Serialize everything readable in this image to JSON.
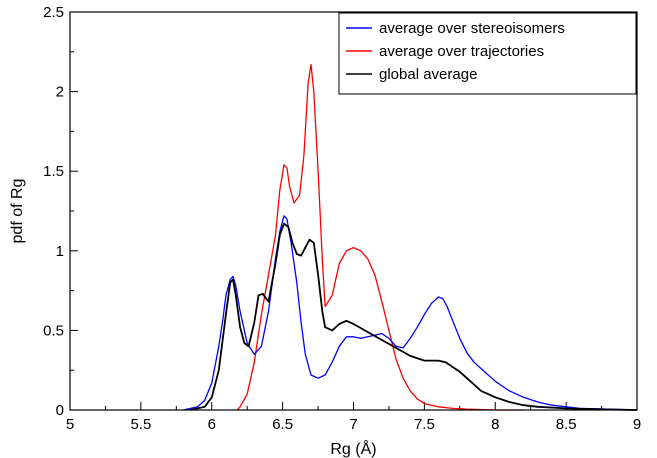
{
  "chart_data": {
    "type": "line",
    "xlabel": "Rg (Å)",
    "ylabel": "pdf of Rg",
    "xlim": [
      5,
      9
    ],
    "ylim": [
      0,
      2.5
    ],
    "xticks": [
      5,
      5.5,
      6,
      6.5,
      7,
      7.5,
      8,
      8.5,
      9
    ],
    "xtick_labels": [
      "5",
      "5.5",
      "6",
      "6.5",
      "7",
      "7.5",
      "8",
      "8.5",
      "9"
    ],
    "yticks": [
      0,
      0.5,
      1,
      1.5,
      2,
      2.5
    ],
    "ytick_labels": [
      "0",
      "0.5",
      "1",
      "1.5",
      "2",
      "2.5"
    ],
    "legend_position": "top-right",
    "grid": false,
    "series": [
      {
        "name": "average over stereoisomers",
        "color": "#0000ff",
        "x": [
          5.8,
          5.9,
          5.95,
          6.0,
          6.05,
          6.08,
          6.1,
          6.13,
          6.15,
          6.17,
          6.2,
          6.25,
          6.3,
          6.35,
          6.4,
          6.45,
          6.48,
          6.51,
          6.53,
          6.56,
          6.6,
          6.63,
          6.66,
          6.7,
          6.75,
          6.8,
          6.85,
          6.9,
          6.95,
          7.0,
          7.05,
          7.1,
          7.15,
          7.2,
          7.25,
          7.3,
          7.35,
          7.4,
          7.45,
          7.5,
          7.55,
          7.6,
          7.63,
          7.66,
          7.7,
          7.75,
          7.8,
          7.85,
          7.9,
          8.0,
          8.1,
          8.2,
          8.3,
          8.4,
          8.5,
          8.6,
          8.8,
          9.0
        ],
        "y": [
          0.0,
          0.02,
          0.06,
          0.17,
          0.4,
          0.58,
          0.72,
          0.82,
          0.84,
          0.78,
          0.62,
          0.42,
          0.35,
          0.4,
          0.62,
          0.95,
          1.12,
          1.22,
          1.2,
          1.05,
          0.8,
          0.55,
          0.35,
          0.22,
          0.2,
          0.22,
          0.3,
          0.4,
          0.46,
          0.46,
          0.45,
          0.46,
          0.47,
          0.48,
          0.45,
          0.4,
          0.39,
          0.45,
          0.52,
          0.6,
          0.67,
          0.71,
          0.7,
          0.65,
          0.56,
          0.45,
          0.36,
          0.3,
          0.26,
          0.18,
          0.12,
          0.08,
          0.05,
          0.03,
          0.02,
          0.01,
          0.005,
          0.0
        ]
      },
      {
        "name": "average over trajectories",
        "color": "#ff0000",
        "x": [
          6.18,
          6.2,
          6.25,
          6.3,
          6.35,
          6.4,
          6.45,
          6.48,
          6.51,
          6.53,
          6.55,
          6.58,
          6.62,
          6.65,
          6.68,
          6.7,
          6.72,
          6.75,
          6.78,
          6.8,
          6.85,
          6.9,
          6.95,
          7.0,
          7.05,
          7.1,
          7.15,
          7.2,
          7.25,
          7.3,
          7.35,
          7.4,
          7.45,
          7.5,
          7.6,
          7.7,
          7.8,
          8.0,
          8.2
        ],
        "y": [
          0.0,
          0.02,
          0.1,
          0.3,
          0.6,
          0.85,
          1.1,
          1.38,
          1.54,
          1.52,
          1.4,
          1.3,
          1.35,
          1.6,
          2.05,
          2.17,
          2.0,
          1.5,
          0.95,
          0.65,
          0.72,
          0.92,
          1.0,
          1.02,
          1.0,
          0.95,
          0.85,
          0.68,
          0.5,
          0.32,
          0.2,
          0.12,
          0.07,
          0.04,
          0.02,
          0.01,
          0.005,
          0.0,
          0.0
        ]
      },
      {
        "name": "global average",
        "color": "#000000",
        "x": [
          5.85,
          5.95,
          6.0,
          6.05,
          6.1,
          6.13,
          6.15,
          6.17,
          6.2,
          6.23,
          6.26,
          6.3,
          6.33,
          6.36,
          6.4,
          6.45,
          6.48,
          6.51,
          6.54,
          6.57,
          6.6,
          6.63,
          6.66,
          6.69,
          6.72,
          6.75,
          6.78,
          6.8,
          6.85,
          6.9,
          6.95,
          7.0,
          7.1,
          7.2,
          7.3,
          7.4,
          7.5,
          7.55,
          7.6,
          7.65,
          7.7,
          7.75,
          7.8,
          7.85,
          7.9,
          8.0,
          8.1,
          8.2,
          8.3,
          8.5,
          8.7,
          9.0
        ],
        "y": [
          0.0,
          0.02,
          0.08,
          0.25,
          0.6,
          0.8,
          0.82,
          0.72,
          0.52,
          0.42,
          0.4,
          0.55,
          0.72,
          0.73,
          0.68,
          0.92,
          1.1,
          1.17,
          1.15,
          1.05,
          0.98,
          0.97,
          1.02,
          1.07,
          1.05,
          0.85,
          0.62,
          0.52,
          0.5,
          0.54,
          0.56,
          0.54,
          0.49,
          0.44,
          0.39,
          0.34,
          0.31,
          0.31,
          0.31,
          0.3,
          0.27,
          0.24,
          0.2,
          0.16,
          0.12,
          0.08,
          0.05,
          0.03,
          0.02,
          0.01,
          0.005,
          0.0
        ]
      }
    ]
  }
}
